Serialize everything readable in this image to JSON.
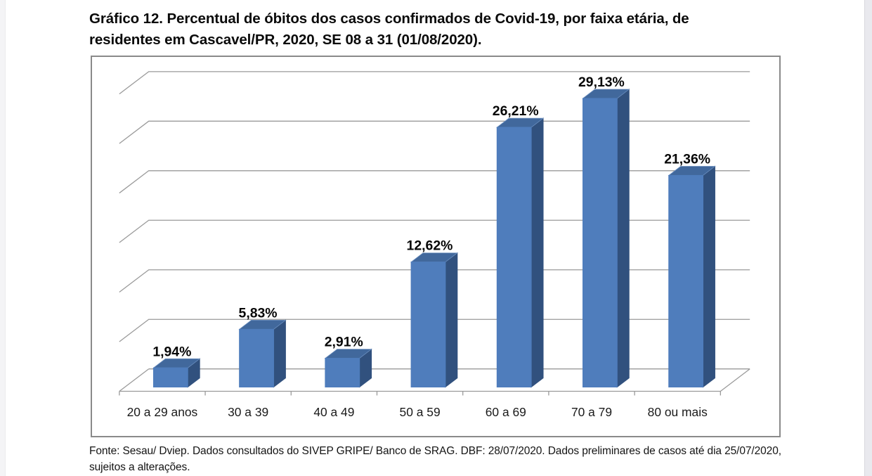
{
  "page": {
    "title_line1": "Gráfico 12. Percentual de óbitos dos casos confirmados de Covid-19, por faixa etária, de",
    "title_line2": "residentes em Cascavel/PR, 2020, SE 08 a 31 (01/08/2020).",
    "footer_line1": "Fonte: Sesau/ Dviep. Dados consultados do SIVEP GRIPE/ Banco de SRAG. DBF: 28/07/2020. Dados preliminares de casos até dia 25/07/2020,",
    "footer_line2": "sujeitos a alterações."
  },
  "chart_data": {
    "type": "bar",
    "style": "3d-column",
    "title": "Gráfico 12. Percentual de óbitos dos casos confirmados de Covid-19, por faixa etária, de residentes em Cascavel/PR, 2020, SE 08 a 31 (01/08/2020).",
    "categories": [
      "20 a 29 anos",
      "30 a 39",
      "40 a 49",
      "50 a 59",
      "60 a 69",
      "70 a 79",
      "80 ou mais"
    ],
    "values": [
      1.94,
      5.83,
      2.91,
      12.62,
      26.21,
      29.13,
      21.36
    ],
    "data_labels": [
      "1,94%",
      "5,83%",
      "2,91%",
      "12,62%",
      "26,21%",
      "29,13%",
      "21,36%"
    ],
    "xlabel": "",
    "ylabel": "",
    "ylim": [
      0,
      30
    ],
    "gridline_step": 5,
    "grid": true,
    "legend": "none",
    "source": "Fonte: Sesau/ Dviep. Dados consultados do SIVEP GRIPE/ Banco de SRAG. DBF: 28/07/2020. Dados preliminares de casos até dia 25/07/2020, sujeitos a alterações.",
    "colors": {
      "bar_front": "#4f7dbc",
      "bar_top": "#41689c",
      "bar_side": "#31517e",
      "bar_edge": "#6b8fbf",
      "gridline": "#9a9a9a",
      "frame_border": "#8a8a8a",
      "label_text": "#060606",
      "category_text": "#1a1a1a"
    }
  }
}
